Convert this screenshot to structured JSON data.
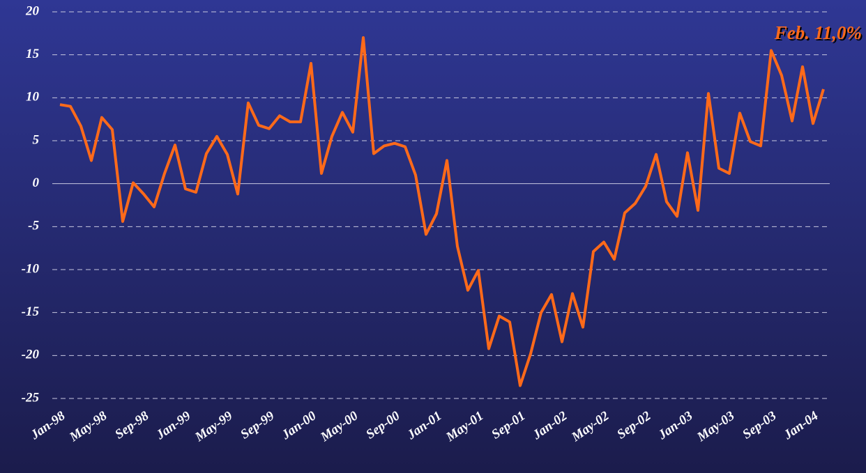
{
  "chart_data": {
    "type": "line",
    "annotation": "Feb. 11,0%",
    "categories": [
      "Jan-98",
      null,
      null,
      null,
      "May-98",
      null,
      null,
      null,
      "Sep-98",
      null,
      null,
      null,
      "Jan-99",
      null,
      null,
      null,
      "May-99",
      null,
      null,
      null,
      "Sep-99",
      null,
      null,
      null,
      "Jan-00",
      null,
      null,
      null,
      "May-00",
      null,
      null,
      null,
      "Sep-00",
      null,
      null,
      null,
      "Jan-01",
      null,
      null,
      null,
      "May-01",
      null,
      null,
      null,
      "Sep-01",
      null,
      null,
      null,
      "Jan-02",
      null,
      null,
      null,
      "May-02",
      null,
      null,
      null,
      "Sep-02",
      null,
      null,
      null,
      "Jan-03",
      null,
      null,
      null,
      "May-03",
      null,
      null,
      null,
      "Sep-03",
      null,
      null,
      null,
      "Jan-04",
      null
    ],
    "values": [
      9.2,
      9.0,
      6.7,
      2.7,
      7.7,
      6.3,
      -4.4,
      0.1,
      -1.2,
      -2.7,
      1.2,
      4.5,
      -0.6,
      -1.0,
      3.5,
      5.5,
      3.4,
      -1.2,
      9.4,
      6.8,
      6.4,
      7.9,
      7.2,
      7.2,
      14.0,
      1.2,
      5.5,
      8.3,
      6.0,
      17.0,
      3.5,
      4.4,
      4.7,
      4.3,
      1.0,
      -5.9,
      -3.5,
      2.7,
      -7.3,
      -12.4,
      -10.1,
      -19.2,
      -15.4,
      -16.1,
      -23.5,
      -19.8,
      -15.0,
      -12.9,
      -18.4,
      -12.8,
      -16.7,
      -7.9,
      -6.8,
      -8.8,
      -3.4,
      -2.3,
      -0.3,
      3.4,
      -2.1,
      -3.8,
      3.6,
      -3.1,
      10.5,
      1.8,
      1.2,
      8.2,
      4.9,
      4.4,
      15.5,
      12.6,
      7.3,
      13.6,
      7.0,
      11.0
    ],
    "color": "#ff6a1a",
    "ylim": [
      -25,
      20
    ],
    "yticks": [
      -25,
      -20,
      -15,
      -10,
      -5,
      0,
      5,
      10,
      15,
      20
    ],
    "grid": true
  }
}
